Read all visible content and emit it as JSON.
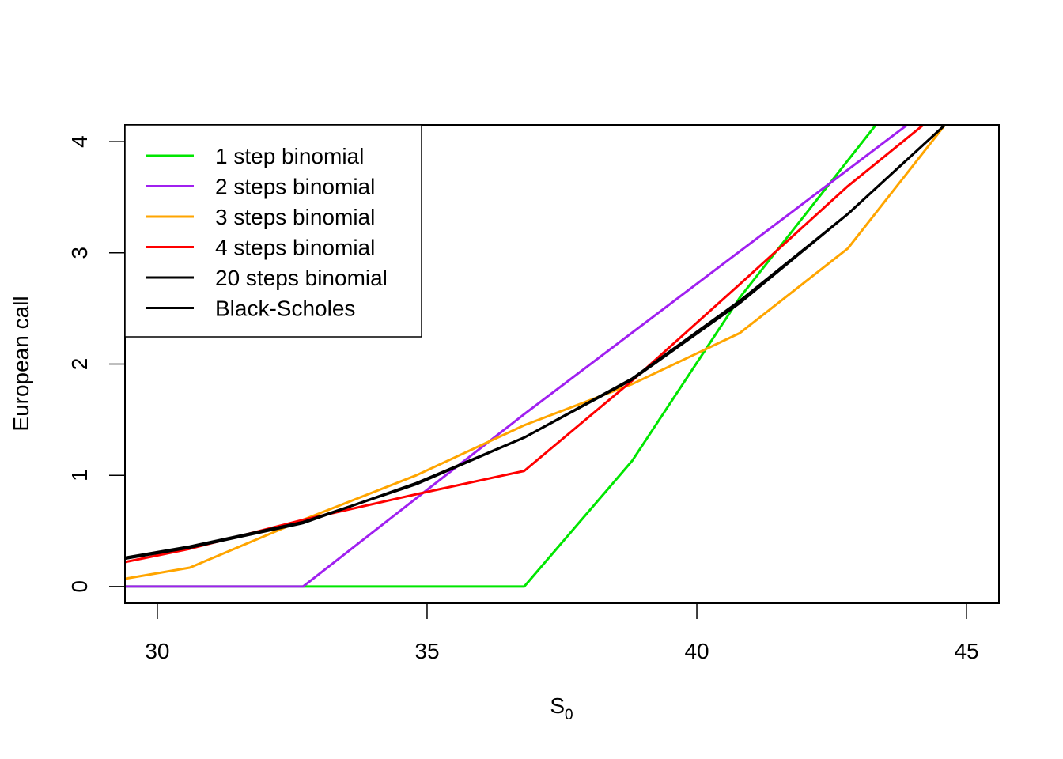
{
  "chart_data": {
    "type": "line",
    "xlabel": "S",
    "xlabel_subscript": "0",
    "ylabel": "European call",
    "xlim": [
      29.4,
      45.6
    ],
    "ylim": [
      -0.15,
      4.15
    ],
    "xticks": [
      30,
      35,
      40,
      45
    ],
    "yticks": [
      0,
      1,
      2,
      3,
      4
    ],
    "legend_position": "top-left",
    "grid": false,
    "series": [
      {
        "name": "1 step binomial",
        "color": "#00e600",
        "x": [
          29.4,
          36.8,
          38.8,
          40.8,
          43.4
        ],
        "y": [
          0,
          0,
          1.13,
          2.6,
          4.2
        ]
      },
      {
        "name": "2 steps binomial",
        "color": "#a020f0",
        "x": [
          29.4,
          32.7,
          36.8,
          43.9
        ],
        "y": [
          0,
          0,
          1.55,
          4.15
        ]
      },
      {
        "name": "3 steps binomial",
        "color": "#ffa500",
        "x": [
          29.4,
          30.6,
          32.7,
          34.8,
          36.8,
          38.8,
          40.8,
          42.8,
          44.6
        ],
        "y": [
          0.07,
          0.17,
          0.6,
          1.0,
          1.45,
          1.82,
          2.28,
          3.04,
          4.15
        ]
      },
      {
        "name": "4 steps binomial",
        "color": "#ff0000",
        "x": [
          29.4,
          30.6,
          32.7,
          34.8,
          36.8,
          38.8,
          40.8,
          42.8,
          44.2
        ],
        "y": [
          0.22,
          0.34,
          0.6,
          0.83,
          1.04,
          1.85,
          2.72,
          3.6,
          4.15
        ]
      },
      {
        "name": "20 steps binomial",
        "color": "#000000",
        "x": [
          29.4,
          30.6,
          32.7,
          34.8,
          36.8,
          38.8,
          40.8,
          42.8,
          44.6
        ],
        "y": [
          0.26,
          0.36,
          0.58,
          0.92,
          1.34,
          1.86,
          2.55,
          3.35,
          4.15
        ]
      },
      {
        "name": "Black-Scholes",
        "color": "#000000",
        "x": [
          29.4,
          30.6,
          32.7,
          34.8,
          36.8,
          38.8,
          40.8,
          42.8,
          44.6
        ],
        "y": [
          0.25,
          0.35,
          0.57,
          0.93,
          1.34,
          1.87,
          2.57,
          3.35,
          4.15
        ]
      }
    ]
  }
}
